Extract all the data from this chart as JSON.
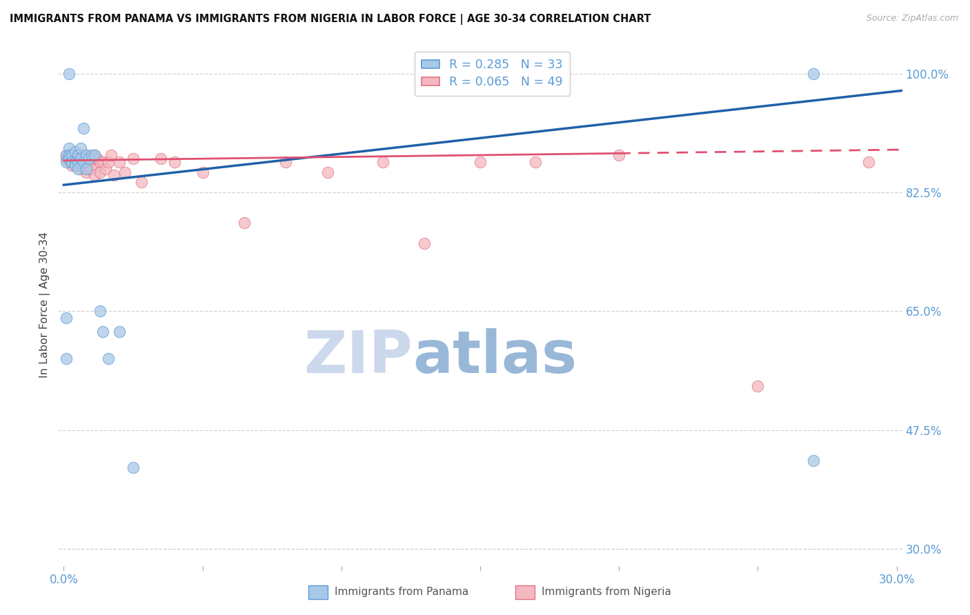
{
  "title": "IMMIGRANTS FROM PANAMA VS IMMIGRANTS FROM NIGERIA IN LABOR FORCE | AGE 30-34 CORRELATION CHART",
  "source": "Source: ZipAtlas.com",
  "ylabel": "In Labor Force | Age 30-34",
  "xlim": [
    -0.002,
    0.302
  ],
  "ylim": [
    0.275,
    1.045
  ],
  "yticks": [
    0.3,
    0.475,
    0.65,
    0.825,
    1.0
  ],
  "ytick_labels": [
    "30.0%",
    "47.5%",
    "65.0%",
    "82.5%",
    "100.0%"
  ],
  "xticks": [
    0.0,
    0.05,
    0.1,
    0.15,
    0.2,
    0.25,
    0.3
  ],
  "xtick_labels": [
    "0.0%",
    "",
    "",
    "",
    "",
    "",
    "30.0%"
  ],
  "legend_panama": "Immigrants from Panama",
  "legend_nigeria": "Immigrants from Nigeria",
  "R_panama": "0.285",
  "N_panama": "33",
  "R_nigeria": "0.065",
  "N_nigeria": "49",
  "panama_color": "#a8c8e8",
  "nigeria_color": "#f4b8c0",
  "panama_edge_color": "#5b9bd5",
  "nigeria_edge_color": "#e07080",
  "panama_line_color": "#2060a8",
  "nigeria_line_color": "#e05070",
  "watermark_zip_color": "#c8d4e8",
  "watermark_atlas_color": "#98b8d8",
  "tick_label_color": "#5b9bd5",
  "axis_label_color": "#444444",
  "grid_color": "#cccccc",
  "background_color": "#ffffff",
  "panama_x": [
    0.001,
    0.001,
    0.002,
    0.002,
    0.002,
    0.003,
    0.003,
    0.003,
    0.004,
    0.004,
    0.004,
    0.005,
    0.005,
    0.005,
    0.006,
    0.006,
    0.007,
    0.007,
    0.008,
    0.008,
    0.009,
    0.01,
    0.011,
    0.013,
    0.014,
    0.016,
    0.02,
    0.025,
    0.001,
    0.001,
    0.002,
    0.27,
    0.27
  ],
  "panama_y": [
    0.88,
    0.87,
    0.89,
    0.88,
    0.875,
    0.87,
    0.88,
    0.87,
    0.885,
    0.87,
    0.865,
    0.88,
    0.87,
    0.86,
    0.89,
    0.875,
    0.92,
    0.87,
    0.88,
    0.86,
    0.875,
    0.88,
    0.88,
    0.65,
    0.62,
    0.58,
    0.62,
    0.42,
    0.64,
    0.58,
    1.0,
    1.0,
    0.43
  ],
  "nigeria_x": [
    0.001,
    0.001,
    0.002,
    0.002,
    0.003,
    0.003,
    0.003,
    0.004,
    0.004,
    0.005,
    0.005,
    0.005,
    0.006,
    0.006,
    0.007,
    0.007,
    0.008,
    0.008,
    0.009,
    0.009,
    0.01,
    0.01,
    0.011,
    0.011,
    0.012,
    0.013,
    0.013,
    0.014,
    0.015,
    0.016,
    0.017,
    0.018,
    0.02,
    0.022,
    0.025,
    0.028,
    0.035,
    0.04,
    0.05,
    0.065,
    0.08,
    0.095,
    0.115,
    0.13,
    0.15,
    0.17,
    0.2,
    0.25,
    0.29
  ],
  "nigeria_y": [
    0.88,
    0.875,
    0.88,
    0.87,
    0.875,
    0.87,
    0.865,
    0.88,
    0.87,
    0.88,
    0.875,
    0.865,
    0.88,
    0.86,
    0.875,
    0.87,
    0.88,
    0.855,
    0.87,
    0.86,
    0.875,
    0.86,
    0.88,
    0.85,
    0.875,
    0.87,
    0.855,
    0.87,
    0.86,
    0.87,
    0.88,
    0.85,
    0.87,
    0.855,
    0.875,
    0.84,
    0.875,
    0.87,
    0.855,
    0.78,
    0.87,
    0.855,
    0.87,
    0.75,
    0.87,
    0.87,
    0.88,
    0.54,
    0.87
  ],
  "blue_line_x0": 0.0,
  "blue_line_y0": 0.836,
  "blue_line_x1": 0.302,
  "blue_line_y1": 0.975,
  "pink_line_x0": 0.0,
  "pink_line_y0": 0.872,
  "pink_line_x1": 0.302,
  "pink_line_y1": 0.888
}
